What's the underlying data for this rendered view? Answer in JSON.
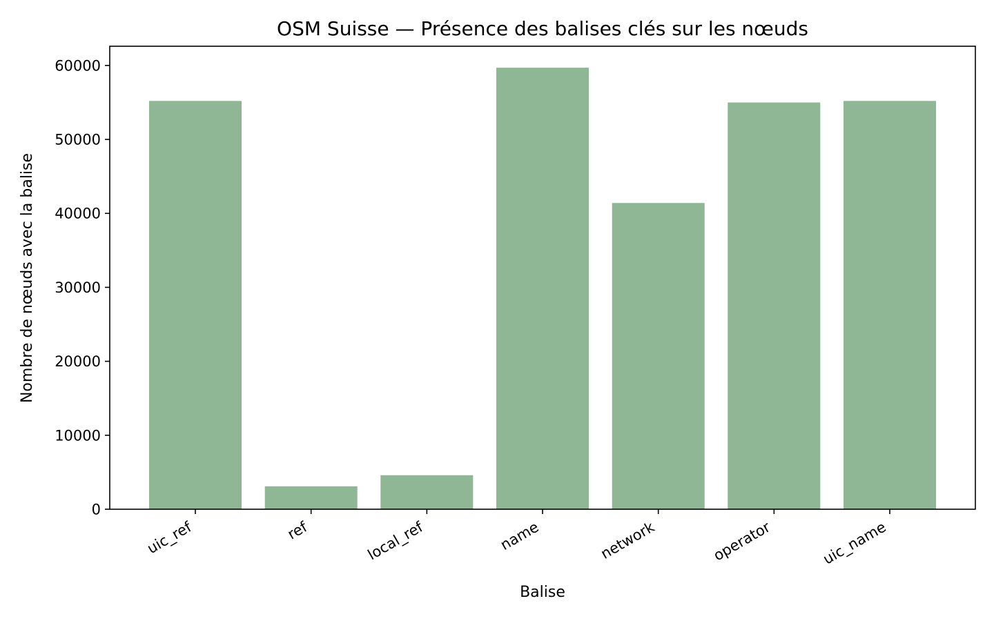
{
  "chart_data": {
    "type": "bar",
    "title": "OSM Suisse — Présence des balises clés sur les nœuds",
    "xlabel": "Balise",
    "ylabel": "Nombre de nœuds avec la balise",
    "categories": [
      "uic_ref",
      "ref",
      "local_ref",
      "name",
      "network",
      "operator",
      "uic_name"
    ],
    "values": [
      55200,
      3100,
      4600,
      59700,
      41400,
      55000,
      55200
    ],
    "ylim": [
      0,
      62600
    ],
    "yticks": [
      0,
      10000,
      20000,
      30000,
      40000,
      50000,
      60000
    ],
    "ytick_labels": [
      "0",
      "10000",
      "20000",
      "30000",
      "40000",
      "50000",
      "60000"
    ],
    "bar_color": "#8fb795",
    "grid": false,
    "legend": "none"
  }
}
